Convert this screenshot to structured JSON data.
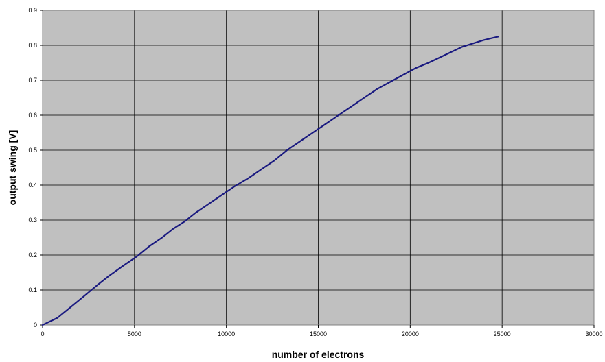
{
  "chart_data": {
    "type": "line",
    "title": "",
    "xlabel": "number of electrons",
    "ylabel": "output swing [V]",
    "xlim": [
      0,
      30000
    ],
    "ylim": [
      0,
      0.9
    ],
    "xticks": [
      0,
      5000,
      10000,
      15000,
      20000,
      25000,
      30000
    ],
    "yticks": [
      0,
      0.1,
      0.2,
      0.3,
      0.4,
      0.5,
      0.6,
      0.7,
      0.8,
      0.9
    ],
    "grid": true,
    "legend": "none",
    "colors": {
      "plot_background": "#c0c0c0",
      "gridline": "#000000",
      "series_line": "#1a1a80"
    },
    "series": [
      {
        "x": [
          0,
          800,
          1500,
          2200,
          3000,
          3600,
          4400,
          5100,
          5800,
          6500,
          7100,
          7700,
          8300,
          9000,
          9700,
          10400,
          11200,
          11900,
          12600,
          13300,
          14000,
          14700,
          15400,
          16100,
          16800,
          17500,
          18200,
          18900,
          19600,
          20300,
          21000,
          21600,
          22200,
          22800,
          23400,
          24000,
          24400,
          24800
        ],
        "y": [
          0,
          0.02,
          0.05,
          0.08,
          0.115,
          0.14,
          0.17,
          0.195,
          0.225,
          0.25,
          0.275,
          0.295,
          0.32,
          0.345,
          0.37,
          0.395,
          0.42,
          0.445,
          0.47,
          0.5,
          0.525,
          0.55,
          0.575,
          0.6,
          0.625,
          0.65,
          0.675,
          0.695,
          0.715,
          0.735,
          0.75,
          0.765,
          0.78,
          0.795,
          0.805,
          0.815,
          0.82,
          0.825
        ]
      }
    ]
  }
}
